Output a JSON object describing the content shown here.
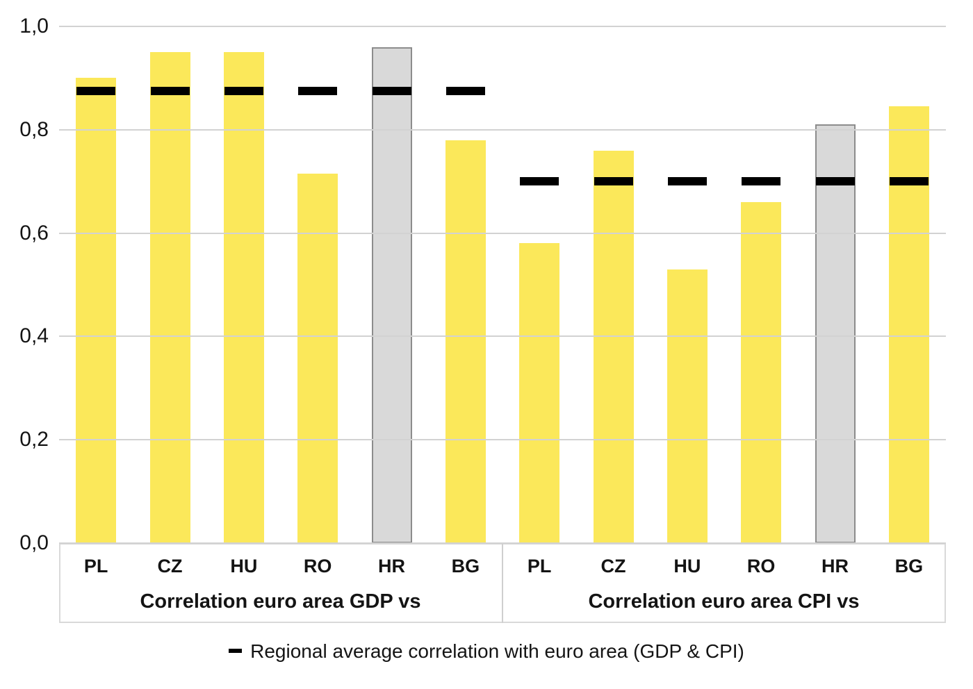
{
  "chart_data": {
    "type": "bar",
    "title": "",
    "categories": [
      "PL",
      "CZ",
      "HU",
      "RO",
      "HR",
      "BG"
    ],
    "highlight_category": "HR",
    "groups": [
      {
        "id": "gdp",
        "label": "Correlation euro area GDP vs",
        "values": [
          0.9,
          0.95,
          0.95,
          0.715,
          0.96,
          0.78
        ],
        "average": 0.875
      },
      {
        "id": "cpi",
        "label": "Correlation euro area CPI vs",
        "values": [
          0.58,
          0.76,
          0.53,
          0.66,
          0.81,
          0.845
        ],
        "average": 0.7
      }
    ],
    "yaxis": {
      "min": 0.0,
      "max": 1.0,
      "tick_step": 0.2,
      "tick_labels": [
        "0,0",
        "0,2",
        "0,4",
        "0,6",
        "0,8",
        "1,0"
      ]
    },
    "legend": {
      "marker_icon": "black-dash",
      "label": "Regional average correlation with euro area (GDP & CPI)"
    },
    "grid": "horizontal",
    "colors": {
      "bar": "#FBE85A",
      "highlight_bar_fill": "#D9D9D9",
      "highlight_bar_border": "#8C8C8C",
      "average_dash": "#000000",
      "gridline": "#D2D2D2",
      "frame": "#D9D9D9",
      "text": "#141414"
    }
  }
}
